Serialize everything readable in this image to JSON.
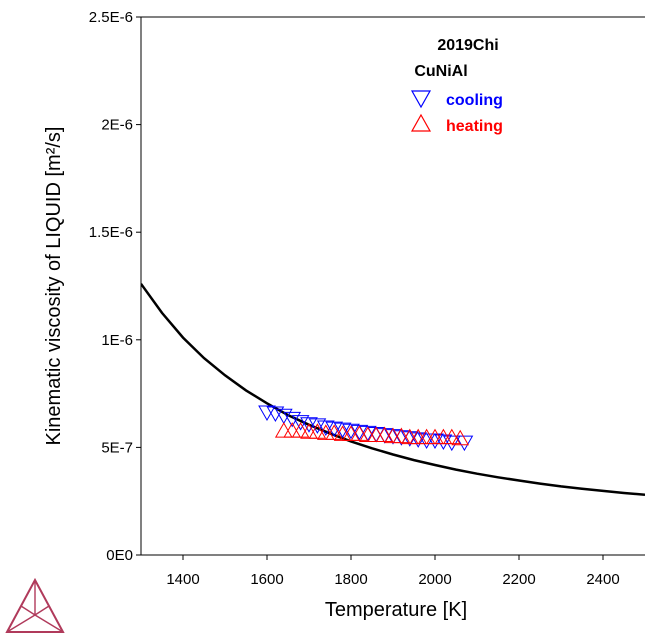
{
  "chart_data": {
    "type": "scatter",
    "title": "",
    "xlabel": "Temperature [K]",
    "ylabel": "Kinematic viscosity of LIQUID [m²/s]",
    "xlim": [
      1300,
      2500
    ],
    "ylim": [
      0,
      2.5e-06
    ],
    "x_ticks": [
      1400,
      1600,
      1800,
      2000,
      2200,
      2400
    ],
    "y_ticks": [
      0,
      5e-07,
      1e-06,
      1.5e-06,
      2e-06,
      2.5e-06
    ],
    "x_tick_labels": [
      "1400",
      "1600",
      "1800",
      "2000",
      "2200",
      "2400"
    ],
    "y_tick_labels": [
      "0E0",
      "5E-7",
      "1E-6",
      "1.5E-6",
      "2E-6",
      "2.5E-6"
    ],
    "grid": false,
    "legend_position": "top-right",
    "legend_title": [
      "2019Chi",
      "CuNiAl"
    ],
    "line": {
      "color": "#000000",
      "x": [
        1300,
        1350,
        1400,
        1450,
        1500,
        1550,
        1600,
        1650,
        1700,
        1750,
        1800,
        1850,
        1900,
        1950,
        2000,
        2050,
        2100,
        2150,
        2200,
        2250,
        2300,
        2350,
        2400,
        2450,
        2500
      ],
      "y": [
        1.26e-06,
        1.125e-06,
        1.01e-06,
        9.15e-07,
        8.35e-07,
        7.65e-07,
        7.05e-07,
        6.5e-07,
        6.05e-07,
        5.65e-07,
        5.28e-07,
        4.96e-07,
        4.67e-07,
        4.41e-07,
        4.18e-07,
        3.97e-07,
        3.78e-07,
        3.61e-07,
        3.46e-07,
        3.32e-07,
        3.19e-07,
        3.08e-07,
        2.98e-07,
        2.88e-07,
        2.8e-07
      ]
    },
    "series": [
      {
        "name": "cooling",
        "marker": "triangle-down",
        "color": "#0000ff",
        "x": [
          1600,
          1620,
          1640,
          1660,
          1680,
          1700,
          1720,
          1740,
          1760,
          1780,
          1800,
          1820,
          1840,
          1860,
          1880,
          1900,
          1920,
          1940,
          1960,
          1980,
          2000,
          2020,
          2040,
          2070
        ],
        "y": [
          6.6e-07,
          6.55e-07,
          6.45e-07,
          6.3e-07,
          6.15e-07,
          6.05e-07,
          6e-07,
          5.9e-07,
          5.85e-07,
          5.8e-07,
          5.75e-07,
          5.7e-07,
          5.65e-07,
          5.6e-07,
          5.55e-07,
          5.5e-07,
          5.45e-07,
          5.4e-07,
          5.35e-07,
          5.3e-07,
          5.3e-07,
          5.25e-07,
          5.2e-07,
          5.2e-07
        ]
      },
      {
        "name": "heating",
        "marker": "triangle-up",
        "color": "#ff0000",
        "x": [
          1640,
          1660,
          1680,
          1700,
          1720,
          1740,
          1760,
          1780,
          1800,
          1820,
          1840,
          1860,
          1880,
          1900,
          1920,
          1940,
          1960,
          1980,
          2000,
          2020,
          2040,
          2060
        ],
        "y": [
          5.8e-07,
          5.8e-07,
          5.8e-07,
          5.75e-07,
          5.75e-07,
          5.7e-07,
          5.7e-07,
          5.65e-07,
          5.65e-07,
          5.65e-07,
          5.6e-07,
          5.6e-07,
          5.6e-07,
          5.55e-07,
          5.55e-07,
          5.5e-07,
          5.5e-07,
          5.5e-07,
          5.5e-07,
          5.5e-07,
          5.5e-07,
          5.45e-07
        ]
      }
    ]
  },
  "logo": {
    "name": "Thermo-Calc logo",
    "color": "#b03a5b"
  }
}
